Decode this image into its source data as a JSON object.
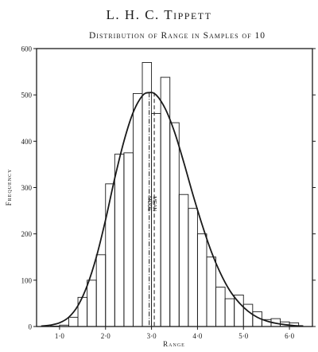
{
  "header": "L. H. C. Tippett",
  "chart_data": {
    "type": "bar",
    "title": "Distribution of Range in Samples of 10",
    "xlabel": "Range",
    "ylabel": "Frequency",
    "xlim": [
      0.5,
      6.5
    ],
    "ylim": [
      0,
      600
    ],
    "x_ticks": [
      {
        "value": 1.0,
        "label": "1·0"
      },
      {
        "value": 2.0,
        "label": "2·0"
      },
      {
        "value": 3.0,
        "label": "3·0"
      },
      {
        "value": 4.0,
        "label": "4·0"
      },
      {
        "value": 5.0,
        "label": "5·0"
      },
      {
        "value": 6.0,
        "label": "6·0"
      }
    ],
    "y_ticks": [
      0,
      100,
      200,
      300,
      400,
      500,
      600
    ],
    "bin_width": 0.2,
    "bins": [
      {
        "start": 0.8,
        "value": 1
      },
      {
        "start": 1.0,
        "value": 3
      },
      {
        "start": 1.2,
        "value": 20
      },
      {
        "start": 1.4,
        "value": 63
      },
      {
        "start": 1.6,
        "value": 100
      },
      {
        "start": 1.8,
        "value": 155
      },
      {
        "start": 2.0,
        "value": 308
      },
      {
        "start": 2.2,
        "value": 372
      },
      {
        "start": 2.4,
        "value": 375
      },
      {
        "start": 2.6,
        "value": 503
      },
      {
        "start": 2.8,
        "value": 570
      },
      {
        "start": 3.0,
        "value": 460
      },
      {
        "start": 3.2,
        "value": 538
      },
      {
        "start": 3.4,
        "value": 440
      },
      {
        "start": 3.6,
        "value": 285
      },
      {
        "start": 3.8,
        "value": 255
      },
      {
        "start": 4.0,
        "value": 200
      },
      {
        "start": 4.2,
        "value": 150
      },
      {
        "start": 4.4,
        "value": 85
      },
      {
        "start": 4.6,
        "value": 60
      },
      {
        "start": 4.8,
        "value": 68
      },
      {
        "start": 5.0,
        "value": 48
      },
      {
        "start": 5.2,
        "value": 32
      },
      {
        "start": 5.4,
        "value": 15
      },
      {
        "start": 5.6,
        "value": 17
      },
      {
        "start": 5.8,
        "value": 10
      },
      {
        "start": 6.0,
        "value": 8
      }
    ],
    "fitted_curve": [
      [
        0.6,
        1
      ],
      [
        0.8,
        3
      ],
      [
        1.0,
        8
      ],
      [
        1.2,
        20
      ],
      [
        1.4,
        45
      ],
      [
        1.6,
        88
      ],
      [
        1.8,
        150
      ],
      [
        2.0,
        230
      ],
      [
        2.2,
        320
      ],
      [
        2.4,
        400
      ],
      [
        2.6,
        462
      ],
      [
        2.8,
        498
      ],
      [
        2.95,
        505
      ],
      [
        3.1,
        500
      ],
      [
        3.3,
        470
      ],
      [
        3.5,
        420
      ],
      [
        3.7,
        355
      ],
      [
        3.9,
        285
      ],
      [
        4.1,
        220
      ],
      [
        4.3,
        162
      ],
      [
        4.5,
        115
      ],
      [
        4.7,
        78
      ],
      [
        4.9,
        52
      ],
      [
        5.1,
        33
      ],
      [
        5.3,
        20
      ],
      [
        5.5,
        12
      ],
      [
        5.7,
        7
      ],
      [
        5.9,
        4
      ],
      [
        6.1,
        2
      ],
      [
        6.3,
        1
      ]
    ],
    "annotations": [
      {
        "label": "MODE",
        "x": 2.95
      },
      {
        "label": "MEAN",
        "x": 3.06
      }
    ],
    "grid": false,
    "colors": {
      "ink": "#1a1a1a",
      "paper": "#ffffff"
    }
  }
}
